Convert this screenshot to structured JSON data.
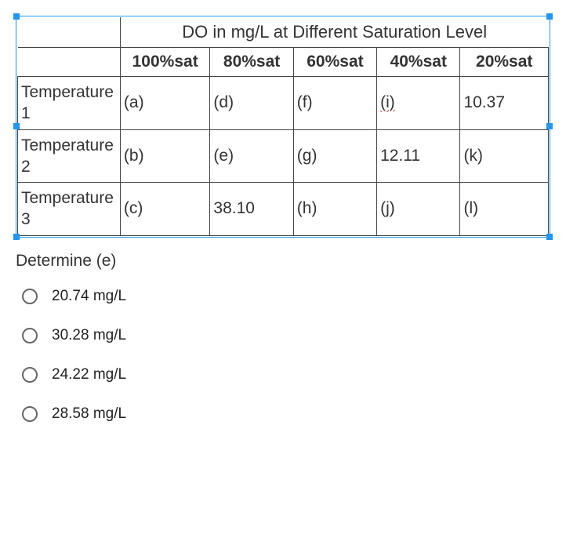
{
  "table": {
    "title": "DO in mg/L at Different Saturation Level",
    "headers": [
      "100%sat",
      "80%sat",
      "60%sat",
      "40%sat",
      "20%sat"
    ],
    "rows": [
      {
        "label": "Temperature 1",
        "cells": [
          "(a)",
          "(d)",
          "(f)",
          "(i)",
          "10.37"
        ],
        "wavy_index": 3
      },
      {
        "label": "Temperature 2",
        "cells": [
          "(b)",
          "(e)",
          "(g)",
          "12.11",
          "(k)"
        ],
        "wavy_index": -1
      },
      {
        "label": "Temperature 3",
        "cells": [
          "(c)",
          "38.10",
          "(h)",
          "(j)",
          "(l)"
        ],
        "wavy_index": -1
      }
    ],
    "border_color": "#444444",
    "selection_color": "#2196f3"
  },
  "question": "Determine (e)",
  "options": [
    "20.74 mg/L",
    "30.28 mg/L",
    "24.22 mg/L",
    "28.58 mg/L"
  ],
  "styles": {
    "font_family": "Arial, Helvetica, sans-serif",
    "body_fontsize": 21,
    "option_fontsize": 19,
    "text_color": "#333333",
    "background": "#ffffff",
    "radio_border": "#666666",
    "wavy_color": "#d32f2f"
  }
}
